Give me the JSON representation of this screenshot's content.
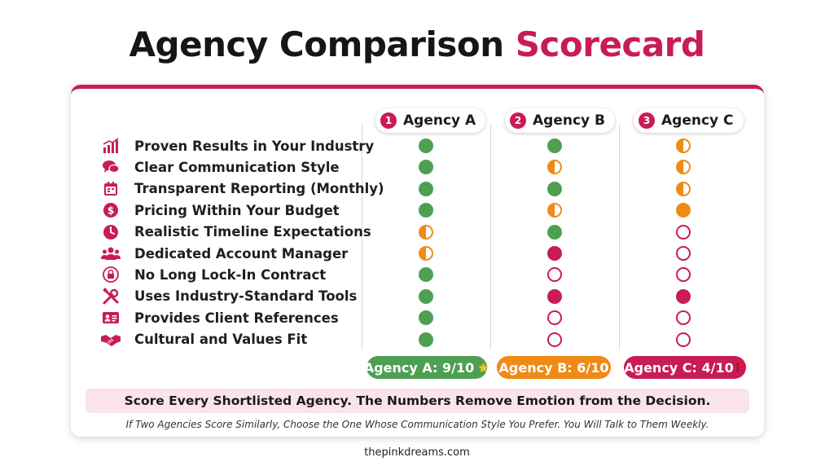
{
  "title": {
    "main": "Agency Comparison",
    "accent": "Scorecard"
  },
  "colors": {
    "accent": "#c81c56",
    "green": "#4e9f52",
    "orange": "#ef8a16",
    "banner_bg": "#fbe3ea"
  },
  "agencies": [
    {
      "number": "1",
      "name": "Agency A"
    },
    {
      "number": "2",
      "name": "Agency B"
    },
    {
      "number": "3",
      "name": "Agency C"
    }
  ],
  "criteria": [
    {
      "icon": "chart-growth-icon",
      "label": "Proven Results in Your Industry",
      "ratings": [
        "full-green",
        "full-green",
        "half"
      ]
    },
    {
      "icon": "chat-bubbles-icon",
      "label": "Clear Communication Style",
      "ratings": [
        "full-green",
        "half",
        "half"
      ]
    },
    {
      "icon": "monthly-calendar-icon",
      "label": "Transparent Reporting (Monthly)",
      "ratings": [
        "full-green",
        "full-green",
        "half"
      ]
    },
    {
      "icon": "dollar-coin-icon",
      "label": "Pricing Within Your Budget",
      "ratings": [
        "full-green",
        "half",
        "full-orange"
      ]
    },
    {
      "icon": "clock-icon",
      "label": "Realistic Timeline Expectations",
      "ratings": [
        "half",
        "full-green",
        "empty"
      ]
    },
    {
      "icon": "team-people-icon",
      "label": "Dedicated Account Manager",
      "ratings": [
        "half",
        "full-pink",
        "empty"
      ]
    },
    {
      "icon": "lock-icon",
      "label": "No Long Lock-In Contract",
      "ratings": [
        "full-green",
        "empty",
        "empty"
      ]
    },
    {
      "icon": "tools-icon",
      "label": "Uses Industry-Standard Tools",
      "ratings": [
        "full-green",
        "full-pink",
        "full-pink"
      ]
    },
    {
      "icon": "id-card-icon",
      "label": "Provides Client References",
      "ratings": [
        "full-green",
        "empty",
        "empty"
      ]
    },
    {
      "icon": "handshake-icon",
      "label": "Cultural and Values Fit",
      "ratings": [
        "full-green",
        "empty",
        "empty"
      ]
    }
  ],
  "scores": [
    {
      "label": "Agency A: 9/10",
      "badge": "star-icon",
      "style": "green"
    },
    {
      "label": "Agency B: 6/10",
      "badge": "",
      "style": "orange"
    },
    {
      "label": "Agency C: 4/10",
      "badge": "red-flag-icon",
      "style": "pink"
    }
  ],
  "banner": "Score Every Shortlisted Agency. The Numbers Remove Emotion from the Decision.",
  "note": "If Two Agencies Score Similarly, Choose the One Whose Communication Style You Prefer. You Will Talk to Them Weekly.",
  "footer": "thepinkdreams.com"
}
